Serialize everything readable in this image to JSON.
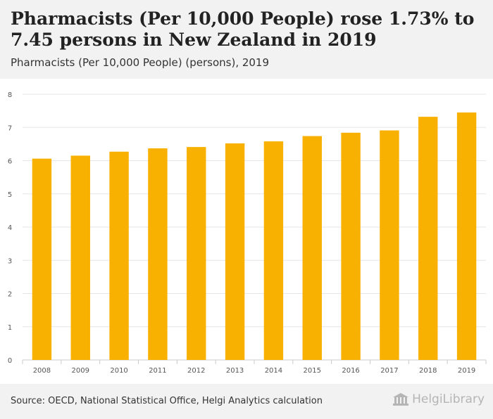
{
  "header": {
    "title": "Pharmacists (Per 10,000 People) rose 1.73% to 7.45 persons in New Zealand in 2019",
    "subtitle": "Pharmacists (Per 10,000 People) (persons), 2019"
  },
  "footer": {
    "source": "Source: OECD, National Statistical Office, Helgi Analytics calculation",
    "logo_text": "HelgiLibrary"
  },
  "colors": {
    "bar": "#f8b100",
    "grid": "#e6e6e6",
    "axis_text": "#555555"
  },
  "chart_data": {
    "type": "bar",
    "title": "Pharmacists (Per 10,000 People) rose 1.73% to 7.45 persons in New Zealand in 2019",
    "subtitle": "Pharmacists (Per 10,000 People) (persons), 2019",
    "categories": [
      "2008",
      "2009",
      "2010",
      "2011",
      "2012",
      "2013",
      "2014",
      "2015",
      "2016",
      "2017",
      "2018",
      "2019"
    ],
    "values": [
      6.06,
      6.15,
      6.27,
      6.37,
      6.41,
      6.52,
      6.58,
      6.74,
      6.84,
      6.91,
      7.32,
      7.45
    ],
    "ylim": [
      0,
      8
    ],
    "yticks": [
      "0",
      "1",
      "2",
      "3",
      "4",
      "5",
      "6",
      "7",
      "8"
    ],
    "xlabel": "",
    "ylabel": "",
    "grid": true
  }
}
